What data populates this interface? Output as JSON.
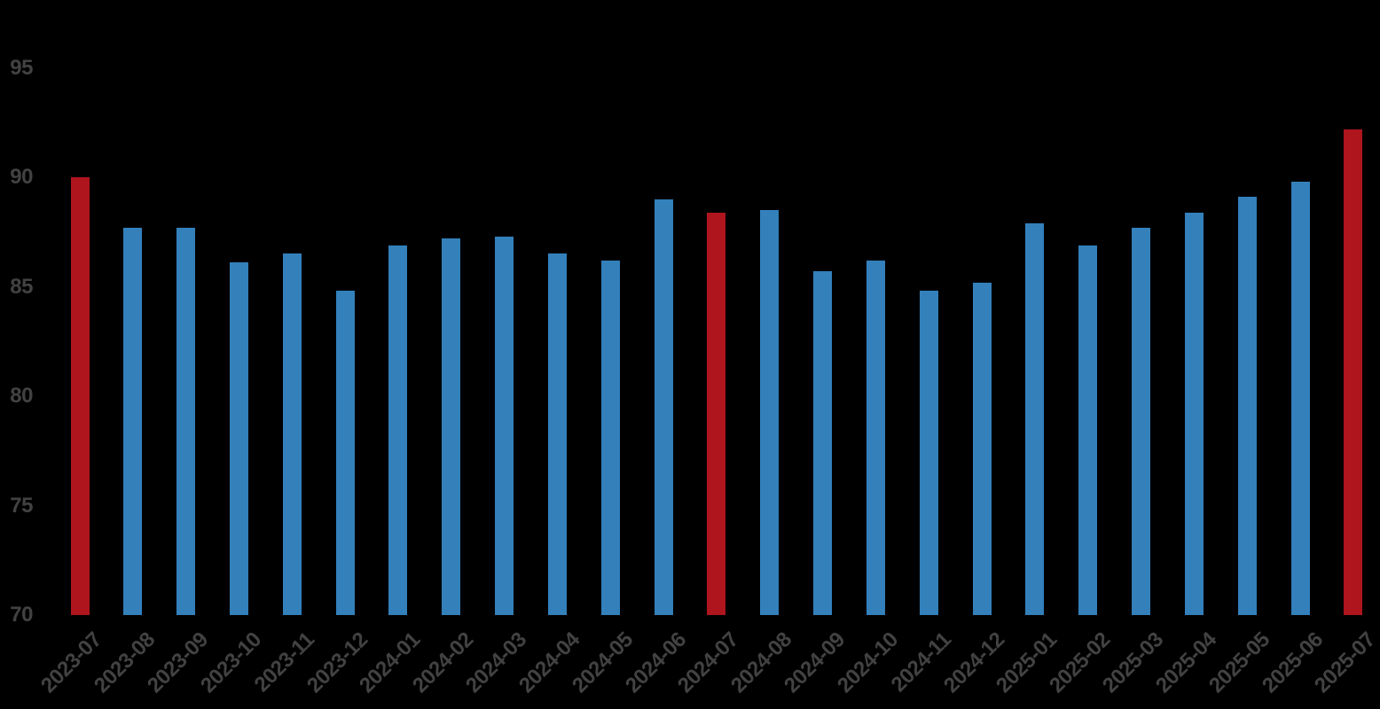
{
  "figure": {
    "background": "#000000"
  },
  "chart_data": {
    "type": "bar",
    "title": "",
    "xlabel": "",
    "ylabel": "",
    "categories": [
      "2023-07",
      "2023-08",
      "2023-09",
      "2023-10",
      "2023-11",
      "2023-12",
      "2024-01",
      "2024-02",
      "2024-03",
      "2024-04",
      "2024-05",
      "2024-06",
      "2024-07",
      "2024-08",
      "2024-09",
      "2024-10",
      "2024-11",
      "2024-12",
      "2025-01",
      "2025-02",
      "2025-03",
      "2025-04",
      "2025-05",
      "2025-06",
      "2025-07"
    ],
    "values": [
      90.0,
      87.7,
      87.7,
      86.1,
      86.5,
      84.8,
      86.9,
      87.2,
      87.3,
      86.5,
      86.2,
      89.0,
      88.4,
      88.5,
      85.7,
      86.2,
      84.8,
      85.2,
      87.9,
      86.9,
      87.7,
      88.4,
      89.1,
      89.8,
      92.2
    ],
    "highlight_indices": [
      0,
      12,
      24
    ],
    "colors": {
      "bar": "#3380bb",
      "highlight": "#ae151d",
      "tick_label": "#424242"
    },
    "ylim": [
      70,
      95
    ],
    "y_ticks": [
      70,
      75,
      80,
      85,
      90,
      95
    ],
    "grid": false,
    "legend": null
  }
}
